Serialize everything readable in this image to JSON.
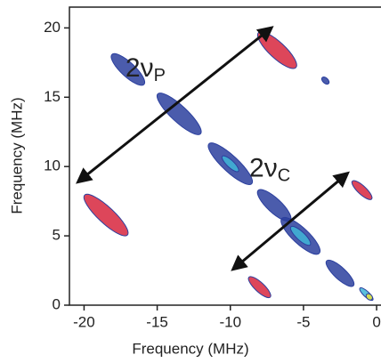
{
  "chart_data": {
    "type": "contour",
    "xlabel": "Frequency (MHz)",
    "ylabel": "Frequency (MHz)",
    "xlim": [
      -21,
      0.3
    ],
    "ylim": [
      0,
      21.5
    ],
    "xticks": [
      -20,
      -15,
      -10,
      -5,
      0
    ],
    "yticks": [
      0,
      5,
      10,
      15,
      20
    ],
    "peaks": [
      {
        "x": -17,
        "y": 17,
        "size": 3,
        "color": "#2b3f9e"
      },
      {
        "x": -13.5,
        "y": 13.8,
        "size": 4,
        "color": "#2b3f9e"
      },
      {
        "x": -10,
        "y": 10.2,
        "size": 4,
        "color": "#2b3f9e"
      },
      {
        "x": -10,
        "y": 10.2,
        "size": 1.5,
        "color": "#3fb5d6"
      },
      {
        "x": -7,
        "y": 7.2,
        "size": 3,
        "color": "#2b3f9e"
      },
      {
        "x": -5.2,
        "y": 5,
        "size": 3.5,
        "color": "#2b3f9e"
      },
      {
        "x": -5.2,
        "y": 5,
        "size": 1.8,
        "color": "#3fb5d6"
      },
      {
        "x": -2.5,
        "y": 2.3,
        "size": 2.5,
        "color": "#2b3f9e"
      },
      {
        "x": -0.7,
        "y": 0.8,
        "size": 1.2,
        "color": "#3fb5d6"
      },
      {
        "x": -0.5,
        "y": 0.6,
        "size": 0.5,
        "color": "#e8e23a"
      },
      {
        "x": -18.5,
        "y": 6.5,
        "size": 4,
        "color": "#d7263d"
      },
      {
        "x": -6.8,
        "y": 18.4,
        "size": 3.5,
        "color": "#d7263d"
      },
      {
        "x": -1,
        "y": 8.3,
        "size": 1.8,
        "color": "#d7263d"
      },
      {
        "x": -8,
        "y": 1.3,
        "size": 2,
        "color": "#d7263d"
      },
      {
        "x": -3.5,
        "y": 16.2,
        "size": 0.6,
        "color": "#2b3f9e"
      }
    ],
    "annotations": [
      {
        "text": "2ν",
        "sub": "P",
        "x": -15.8,
        "y": 17.0,
        "arrow_x": [
          -20.4,
          -7.2
        ],
        "arrow_y": [
          8.9,
          20.0
        ]
      },
      {
        "text": "2ν",
        "sub": "C",
        "x": -7.3,
        "y": 9.8,
        "arrow_x": [
          -9.8,
          -2.0
        ],
        "arrow_y": [
          2.6,
          9.5
        ]
      }
    ]
  }
}
